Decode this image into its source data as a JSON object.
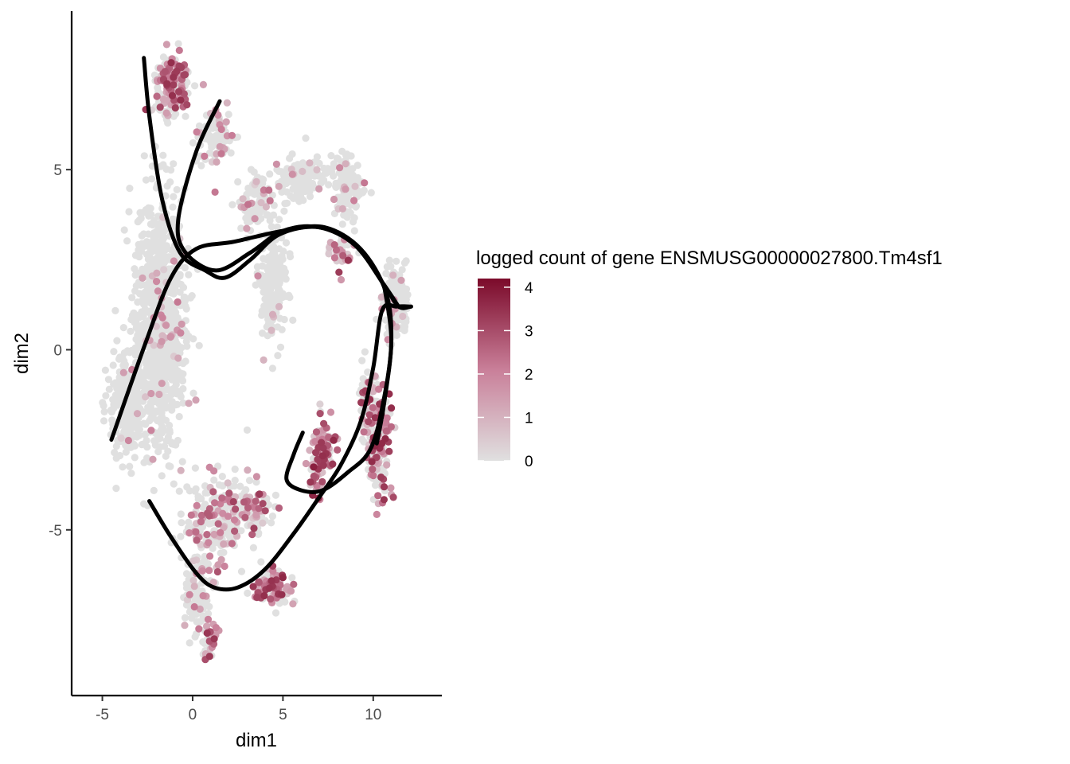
{
  "chart_data": {
    "type": "scatter",
    "title": "",
    "xlabel": "dim1",
    "ylabel": "dim2",
    "xlim": [
      -6.7,
      13.8
    ],
    "ylim": [
      -9.6,
      9.4
    ],
    "x_ticks": [
      -5,
      0,
      5,
      10
    ],
    "y_ticks": [
      -5,
      0,
      5
    ],
    "x_tick_labels": [
      "-5",
      "0",
      "5",
      "10"
    ],
    "y_tick_labels": [
      "-5",
      "0",
      "5"
    ],
    "grid": false,
    "color_scale": {
      "name": "logged count of gene ENSMUSG00000027800.Tm4sf1",
      "min": 0,
      "max": 4.2,
      "low_color": "#e0e0e0",
      "mid_color": "#c97f99",
      "high_color": "#7b0a2a",
      "ticks": [
        0,
        1,
        2,
        3,
        4
      ],
      "tick_labels": [
        "0",
        "1",
        "2",
        "3",
        "4"
      ],
      "position": "right"
    },
    "clusters": [
      {
        "cx": -1.8,
        "cy": 0.8,
        "sx": 1.1,
        "sy": 3.0,
        "n": 900,
        "expr": 0.04
      },
      {
        "cx": -3.6,
        "cy": -1.5,
        "sx": 0.9,
        "sy": 1.3,
        "n": 260,
        "expr": 0.02
      },
      {
        "cx": -1.2,
        "cy": 7.3,
        "sx": 0.7,
        "sy": 0.7,
        "n": 180,
        "expr": 0.55
      },
      {
        "cx": 1.2,
        "cy": 6.0,
        "sx": 0.9,
        "sy": 0.8,
        "n": 90,
        "expr": 0.15
      },
      {
        "cx": 3.5,
        "cy": 4.0,
        "sx": 0.8,
        "sy": 0.7,
        "n": 110,
        "expr": 0.1
      },
      {
        "cx": 4.5,
        "cy": 1.8,
        "sx": 0.6,
        "sy": 1.3,
        "n": 180,
        "expr": 0.05
      },
      {
        "cx": 6.0,
        "cy": 4.8,
        "sx": 1.2,
        "sy": 0.5,
        "n": 120,
        "expr": 0.06
      },
      {
        "cx": 8.5,
        "cy": 4.6,
        "sx": 0.7,
        "sy": 0.7,
        "n": 130,
        "expr": 0.1
      },
      {
        "cx": 11.3,
        "cy": 1.3,
        "sx": 0.6,
        "sy": 0.8,
        "n": 160,
        "expr": 0.08
      },
      {
        "cx": 8.2,
        "cy": 2.8,
        "sx": 0.6,
        "sy": 0.5,
        "n": 40,
        "expr": 0.55
      },
      {
        "cx": 7.2,
        "cy": -2.7,
        "sx": 0.6,
        "sy": 0.6,
        "n": 90,
        "expr": 0.65
      },
      {
        "cx": 6.9,
        "cy": -3.5,
        "sx": 0.3,
        "sy": 0.6,
        "n": 30,
        "expr": 0.7
      },
      {
        "cx": 10.3,
        "cy": -2.6,
        "sx": 0.5,
        "sy": 1.2,
        "n": 150,
        "expr": 0.6
      },
      {
        "cx": 9.5,
        "cy": -1.6,
        "sx": 0.3,
        "sy": 1.0,
        "n": 50,
        "expr": 0.5
      },
      {
        "cx": 1.3,
        "cy": -4.8,
        "sx": 1.5,
        "sy": 1.0,
        "n": 210,
        "expr": 0.3
      },
      {
        "cx": 3.3,
        "cy": -4.4,
        "sx": 1.0,
        "sy": 0.5,
        "n": 80,
        "expr": 0.45
      },
      {
        "cx": 0.3,
        "cy": -6.8,
        "sx": 0.6,
        "sy": 0.9,
        "n": 100,
        "expr": 0.15
      },
      {
        "cx": 4.5,
        "cy": -6.6,
        "sx": 0.9,
        "sy": 0.4,
        "n": 110,
        "expr": 0.6
      },
      {
        "cx": 1.0,
        "cy": -8.2,
        "sx": 0.3,
        "sy": 0.5,
        "n": 40,
        "expr": 0.5
      }
    ],
    "trajectories": [
      {
        "name": "",
        "points": [
          [
            -2.7,
            8.1
          ],
          [
            -2.4,
            6.5
          ],
          [
            -1.7,
            4.2
          ],
          [
            -0.7,
            2.7
          ],
          [
            0.7,
            2.2
          ],
          [
            1.8,
            2.0
          ],
          [
            3.2,
            2.5
          ],
          [
            4.8,
            3.2
          ],
          [
            7.0,
            3.4
          ],
          [
            9.0,
            2.9
          ],
          [
            10.6,
            1.8
          ],
          [
            11.4,
            1.2
          ],
          [
            12.1,
            1.2
          ]
        ]
      },
      {
        "name": "",
        "points": [
          [
            1.5,
            6.9
          ],
          [
            0.2,
            5.5
          ],
          [
            -0.8,
            3.6
          ],
          [
            -0.4,
            2.7
          ],
          [
            1.3,
            2.2
          ],
          [
            3.2,
            2.7
          ],
          [
            5.0,
            3.3
          ],
          [
            7.0,
            3.4
          ],
          [
            9.0,
            2.9
          ],
          [
            10.6,
            1.8
          ],
          [
            11.4,
            1.2
          ]
        ]
      },
      {
        "name": "",
        "points": [
          [
            -4.5,
            -2.5
          ],
          [
            -2.6,
            0.2
          ],
          [
            -1.2,
            2.0
          ],
          [
            0.2,
            2.8
          ],
          [
            2.3,
            3.0
          ],
          [
            5.0,
            3.3
          ],
          [
            7.3,
            3.4
          ],
          [
            9.3,
            2.8
          ],
          [
            10.7,
            1.6
          ],
          [
            11.0,
            0.2
          ],
          [
            10.6,
            -1.5
          ],
          [
            10.2,
            -2.6
          ]
        ]
      },
      {
        "name": "",
        "points": [
          [
            10.6,
            1.8
          ],
          [
            11.0,
            0.2
          ],
          [
            10.5,
            -1.6
          ],
          [
            9.8,
            -2.8
          ],
          [
            8.6,
            -3.4
          ],
          [
            7.2,
            -3.9
          ],
          [
            6.0,
            -3.9
          ],
          [
            5.2,
            -3.6
          ],
          [
            5.6,
            -2.9
          ],
          [
            6.1,
            -2.3
          ]
        ]
      },
      {
        "name": "",
        "points": [
          [
            -2.4,
            -4.2
          ],
          [
            -1.2,
            -5.2
          ],
          [
            0.2,
            -6.2
          ],
          [
            1.2,
            -6.6
          ],
          [
            2.5,
            -6.6
          ],
          [
            4.0,
            -6.1
          ],
          [
            5.6,
            -5.1
          ],
          [
            7.0,
            -4.1
          ],
          [
            8.2,
            -3.2
          ],
          [
            9.3,
            -2.0
          ],
          [
            10.0,
            -0.5
          ],
          [
            10.5,
            1.1
          ],
          [
            11.3,
            1.2
          ],
          [
            12.1,
            1.2
          ]
        ]
      }
    ]
  }
}
